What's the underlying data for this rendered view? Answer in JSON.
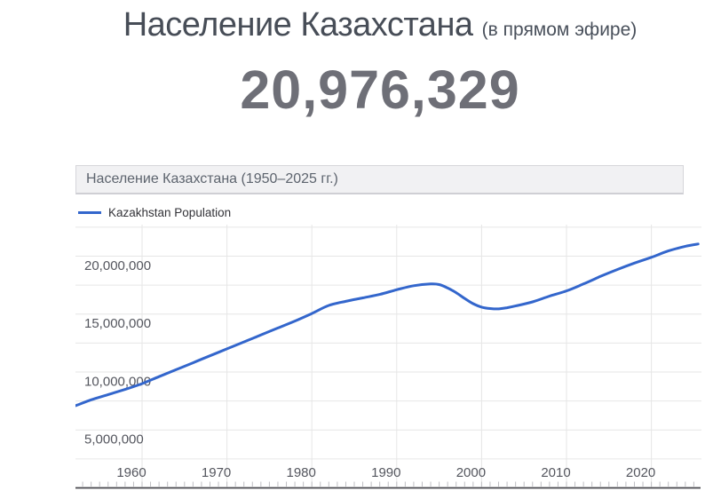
{
  "header": {
    "title": "Население Казахстана",
    "subtitle": "(в прямом эфире)",
    "population_count": "20,976,329"
  },
  "chart_panel": {
    "title": "Население Казахстана (1950–2025 гг.)"
  },
  "legend": {
    "label": "Kazakhstan Population"
  },
  "colors": {
    "line": "#3366cc",
    "gridline": "#e6e6e6",
    "minor_tick": "#bfbfc3",
    "baseline": "#47474d",
    "axis_label": "#54565e"
  },
  "chart_data": {
    "type": "line",
    "title": "Население Казахстана (1950–2025 гг.)",
    "legend_entries": [
      "Kazakhstan Population"
    ],
    "legend_position": "top-left",
    "grid": true,
    "x_axis": {
      "range": [
        1952,
        2026.3
      ],
      "tick_labels": [
        "1960",
        "1970",
        "1980",
        "1990",
        "2000",
        "2010",
        "2020"
      ],
      "tick_years": [
        1960,
        1970,
        1980,
        1990,
        2000,
        2010,
        2020
      ],
      "minor_tick_step_years": 1
    },
    "y_axis": {
      "range": [
        0,
        22800000
      ],
      "gridline_step": 2500000,
      "tick_labels": [
        "5,000,000",
        "10,000,000",
        "15,000,000",
        "20,000,000"
      ],
      "tick_values": [
        5000000,
        10000000,
        15000000,
        20000000
      ]
    },
    "series": [
      {
        "name": "Kazakhstan Population",
        "points": [
          [
            1952.2,
            7100000
          ],
          [
            1954,
            7600000
          ],
          [
            1956,
            8050000
          ],
          [
            1958,
            8500000
          ],
          [
            1960,
            9000000
          ],
          [
            1962,
            9600000
          ],
          [
            1964,
            10200000
          ],
          [
            1966,
            10800000
          ],
          [
            1968,
            11400000
          ],
          [
            1970,
            12000000
          ],
          [
            1972,
            12600000
          ],
          [
            1974,
            13200000
          ],
          [
            1976,
            13800000
          ],
          [
            1978,
            14400000
          ],
          [
            1980,
            15050000
          ],
          [
            1982,
            15750000
          ],
          [
            1984,
            16100000
          ],
          [
            1986,
            16400000
          ],
          [
            1988,
            16700000
          ],
          [
            1990,
            17100000
          ],
          [
            1992,
            17450000
          ],
          [
            1994,
            17600000
          ],
          [
            1995,
            17550000
          ],
          [
            1996,
            17250000
          ],
          [
            1997,
            16850000
          ],
          [
            1998,
            16350000
          ],
          [
            1999,
            15900000
          ],
          [
            2000,
            15600000
          ],
          [
            2001,
            15480000
          ],
          [
            2002,
            15450000
          ],
          [
            2003,
            15550000
          ],
          [
            2004,
            15700000
          ],
          [
            2006,
            16050000
          ],
          [
            2008,
            16550000
          ],
          [
            2010,
            17000000
          ],
          [
            2012,
            17600000
          ],
          [
            2014,
            18250000
          ],
          [
            2016,
            18850000
          ],
          [
            2018,
            19400000
          ],
          [
            2020,
            19900000
          ],
          [
            2022,
            20450000
          ],
          [
            2024,
            20850000
          ],
          [
            2025.5,
            21050000
          ]
        ]
      }
    ]
  }
}
